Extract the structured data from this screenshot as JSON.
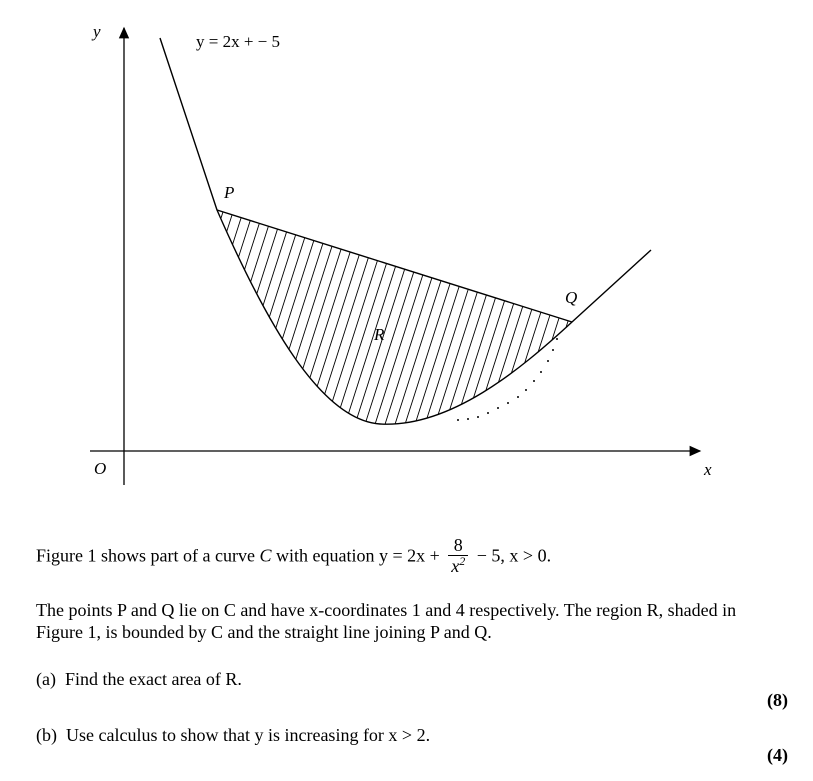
{
  "figure": {
    "y_axis_label": "y",
    "x_axis_label": "x",
    "origin_label": "O",
    "line_label": "y = 2x + − 5",
    "point_p": "P",
    "point_q": "Q",
    "region": "R"
  },
  "question": {
    "intro_prefix": "Figure 1 shows part of a curve ",
    "curve_name": "C",
    "intro_mid": " with equation ",
    "eq_lhs": "y = 2x + ",
    "frac_num": "8",
    "frac_den": "x",
    "frac_den_power": "2",
    "eq_tail": " − 5, x > 0.",
    "para2_line1": "The points P and Q lie on C and have x-coordinates 1 and 4 respectively. The region R, shaded in",
    "para2_line2": "Figure 1, is bounded by C and the straight line joining P and Q.",
    "part_a_label": "(a)",
    "part_a_text": "Find the exact area of R.",
    "part_a_marks": "(8)",
    "part_b_label": "(b)",
    "part_b_text": "Use calculus to show that y is increasing for x > 2.",
    "part_b_marks": "(4)"
  }
}
